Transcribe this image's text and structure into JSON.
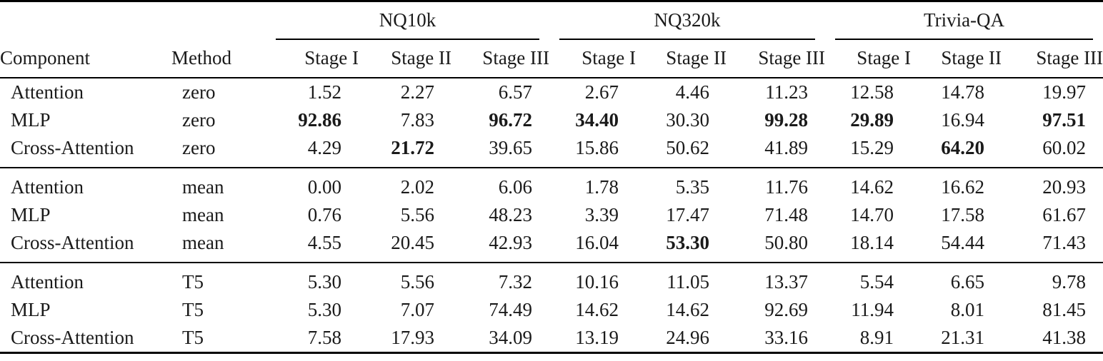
{
  "table": {
    "column_groups": [
      {
        "label": "NQ10k"
      },
      {
        "label": "NQ320k"
      },
      {
        "label": "Trivia-QA"
      }
    ],
    "headers": {
      "component": "Component",
      "method": "Method",
      "stages": [
        "Stage I",
        "Stage II",
        "Stage III"
      ]
    },
    "row_groups": [
      {
        "rows": [
          {
            "component": "Attention",
            "method": "zero",
            "values": [
              "1.52",
              "2.27",
              "6.57",
              "2.67",
              "4.46",
              "11.23",
              "12.58",
              "14.78",
              "19.97"
            ],
            "bold_indices": []
          },
          {
            "component": "MLP",
            "method": "zero",
            "values": [
              "92.86",
              "7.83",
              "96.72",
              "34.40",
              "30.30",
              "99.28",
              "29.89",
              "16.94",
              "97.51"
            ],
            "bold_indices": [
              0,
              2,
              3,
              5,
              6,
              8
            ]
          },
          {
            "component": "Cross-Attention",
            "method": "zero",
            "values": [
              "4.29",
              "21.72",
              "39.65",
              "15.86",
              "50.62",
              "41.89",
              "15.29",
              "64.20",
              "60.02"
            ],
            "bold_indices": [
              1,
              7
            ]
          }
        ]
      },
      {
        "rows": [
          {
            "component": "Attention",
            "method": "mean",
            "values": [
              "0.00",
              "2.02",
              "6.06",
              "1.78",
              "5.35",
              "11.76",
              "14.62",
              "16.62",
              "20.93"
            ],
            "bold_indices": []
          },
          {
            "component": "MLP",
            "method": "mean",
            "values": [
              "0.76",
              "5.56",
              "48.23",
              "3.39",
              "17.47",
              "71.48",
              "14.70",
              "17.58",
              "61.67"
            ],
            "bold_indices": []
          },
          {
            "component": "Cross-Attention",
            "method": "mean",
            "values": [
              "4.55",
              "20.45",
              "42.93",
              "16.04",
              "53.30",
              "50.80",
              "18.14",
              "54.44",
              "71.43"
            ],
            "bold_indices": [
              4
            ]
          }
        ]
      },
      {
        "rows": [
          {
            "component": "Attention",
            "method": "T5",
            "values": [
              "5.30",
              "5.56",
              "7.32",
              "10.16",
              "11.05",
              "13.37",
              "5.54",
              "6.65",
              "9.78"
            ],
            "bold_indices": []
          },
          {
            "component": "MLP",
            "method": "T5",
            "values": [
              "5.30",
              "7.07",
              "74.49",
              "14.62",
              "14.62",
              "92.69",
              "11.94",
              "8.01",
              "81.45"
            ],
            "bold_indices": []
          },
          {
            "component": "Cross-Attention",
            "method": "T5",
            "values": [
              "7.58",
              "17.93",
              "34.09",
              "13.19",
              "24.96",
              "33.16",
              "8.91",
              "21.31",
              "41.38"
            ],
            "bold_indices": []
          }
        ]
      }
    ]
  },
  "colors": {
    "text": "#1a1a1a",
    "rule": "#000000",
    "background": "#ffffff"
  }
}
